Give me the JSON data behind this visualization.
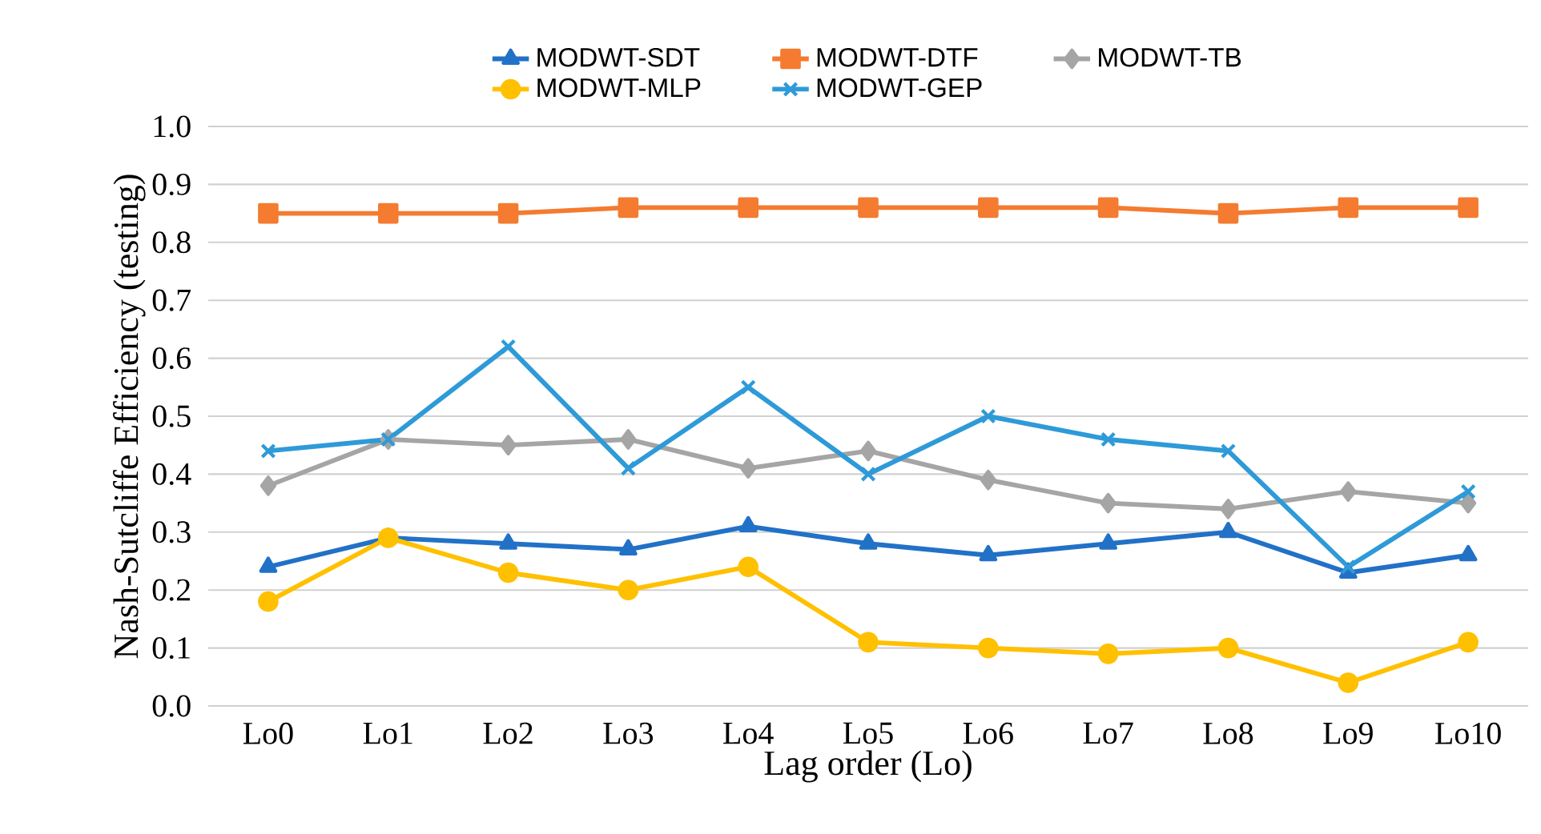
{
  "chart_data": {
    "type": "line",
    "xlabel": "Lag order (Lo)",
    "ylabel": "Nash-Sutcliffe Efficiency (testing)",
    "categories": [
      "Lo0",
      "Lo1",
      "Lo2",
      "Lo3",
      "Lo4",
      "Lo5",
      "Lo6",
      "Lo7",
      "Lo8",
      "Lo9",
      "Lo10"
    ],
    "series": [
      {
        "name": "MODWT-SDT",
        "color": "#2171c7",
        "marker": "triangle",
        "values": [
          0.24,
          0.29,
          0.28,
          0.27,
          0.31,
          0.28,
          0.26,
          0.28,
          0.3,
          0.23,
          0.26
        ]
      },
      {
        "name": "MODWT-DTF",
        "color": "#f47b30",
        "marker": "square",
        "values": [
          0.85,
          0.85,
          0.85,
          0.86,
          0.86,
          0.86,
          0.86,
          0.86,
          0.85,
          0.86,
          0.86
        ]
      },
      {
        "name": "MODWT-TB",
        "color": "#a5a5a5",
        "marker": "diamond",
        "values": [
          0.38,
          0.46,
          0.45,
          0.46,
          0.41,
          0.44,
          0.39,
          0.35,
          0.34,
          0.37,
          0.35
        ]
      },
      {
        "name": "MODWT-MLP",
        "color": "#ffc000",
        "marker": "circle",
        "values": [
          0.18,
          0.29,
          0.23,
          0.2,
          0.24,
          0.11,
          0.1,
          0.09,
          0.1,
          0.04,
          0.11
        ]
      },
      {
        "name": "MODWT-GEP",
        "color": "#2e9ad8",
        "marker": "cross",
        "values": [
          0.44,
          0.46,
          0.62,
          0.41,
          0.55,
          0.4,
          0.5,
          0.46,
          0.44,
          0.24,
          0.37
        ]
      }
    ],
    "ylim": [
      0,
      1
    ],
    "yticks": [
      {
        "value": 0,
        "label": "0.0"
      },
      0.1,
      0.2,
      0.3,
      0.4,
      0.5,
      0.6,
      0.7,
      0.8,
      0.9,
      {
        "value": 1,
        "label": "1.0"
      }
    ],
    "grid": "y",
    "legend": "top",
    "line_style": "solid"
  }
}
